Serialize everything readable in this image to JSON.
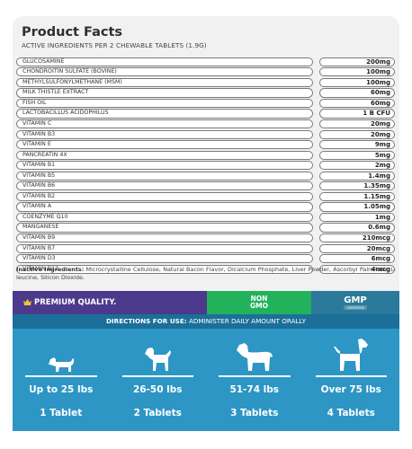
{
  "facts": {
    "title": "Product Facts",
    "subtitle": "ACTIVE INGREDIENTS PER 2 CHEWABLE TABLETS (1.9G)",
    "rows": [
      {
        "name": "GLUCOSAMINE",
        "amount": "200mg"
      },
      {
        "name": "CHONDROITIN SULFATE (BOVINE)",
        "amount": "100mg"
      },
      {
        "name": "METHYLSULFONYLMETHANE (MSM)",
        "amount": "100mg"
      },
      {
        "name": "MILK THISTLE EXTRACT",
        "amount": "60mg"
      },
      {
        "name": "FISH OIL",
        "amount": "60mg"
      },
      {
        "name": "LACTOBACILLUS ACIDOPHILUS",
        "amount": "1 B CFU"
      },
      {
        "name": "VITAMIN C",
        "amount": "20mg"
      },
      {
        "name": "VITAMIN B3",
        "amount": "20mg"
      },
      {
        "name": "VITAMIN E",
        "amount": "9mg"
      },
      {
        "name": "PANCREATIN 4X",
        "amount": "5mg"
      },
      {
        "name": "VITAMIN B1",
        "amount": "2mg"
      },
      {
        "name": "VITAMIN B5",
        "amount": "1.4mg"
      },
      {
        "name": "VITAMIN B6",
        "amount": "1.35mg"
      },
      {
        "name": "VITAMIN B2",
        "amount": "1.15mg"
      },
      {
        "name": "VITAMIN A",
        "amount": "1.05mg"
      },
      {
        "name": "COENZYME Q10",
        "amount": "1mg"
      },
      {
        "name": "MANGANESE",
        "amount": "0.6mg"
      },
      {
        "name": "VITAMIN B9",
        "amount": "210mcg"
      },
      {
        "name": "VITAMIN B7",
        "amount": "20mcg"
      },
      {
        "name": "VITAMIN D3",
        "amount": "6mcg"
      },
      {
        "name": "VITAMIN B12",
        "amount": "4mcg"
      }
    ],
    "inactive_label": "Inactive Ingredients:",
    "inactive_text": "Microcrystalline Cellulose, Natural Bacon Flavor, Dicalcium Phosphate, Liver Powder, Ascorbyl Palmitate, L-leucine, Silicon Dioxide."
  },
  "badges": {
    "premium": "PREMIUM QUALITY.",
    "nongmo_top": "NON",
    "nongmo_bottom": "GMO",
    "gmp": "GMP",
    "gmp_sub": "CERTIFIED",
    "colors": {
      "premium": "#4b3a8c",
      "nongmo": "#22b25b",
      "gmp": "#2c7a9b"
    }
  },
  "directions": {
    "label": "DIRECTIONS FOR USE:",
    "text": "ADMINISTER DAILY AMOUNT ORALLY",
    "columns": [
      {
        "icon": "small-dog-icon",
        "weight": "Up to 25 lbs",
        "dose": "1 Tablet"
      },
      {
        "icon": "medium-dog-icon",
        "weight": "26-50 lbs",
        "dose": "2 Tablets"
      },
      {
        "icon": "large-dog-icon",
        "weight": "51-74 lbs",
        "dose": "3 Tablets"
      },
      {
        "icon": "xl-dog-icon",
        "weight": "Over 75 lbs",
        "dose": "4 Tablets"
      }
    ]
  }
}
